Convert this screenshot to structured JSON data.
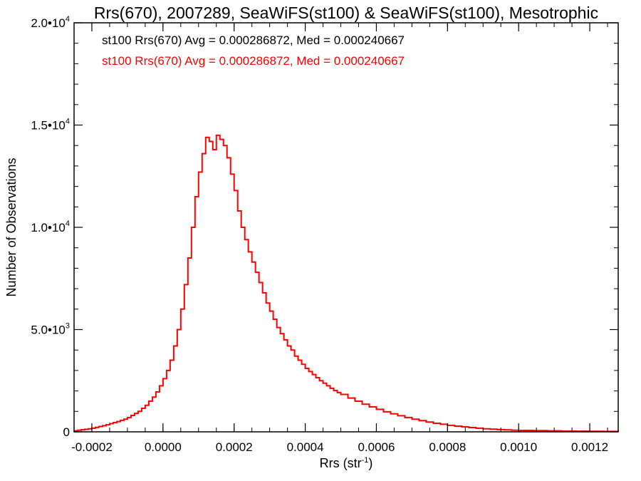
{
  "chart_data": {
    "type": "histogram",
    "title": "Rrs(670), 2007289, SeaWiFS(st100) & SeaWiFS(st100), Mesotrophic",
    "xlabel": {
      "base": "Rrs (str",
      "sup": "-1",
      "tail": ")"
    },
    "ylabel": "Number of Observations",
    "xlim": [
      -0.00025,
      0.00128
    ],
    "ylim": [
      0,
      20000
    ],
    "x_ticks": [
      {
        "value": -0.0002,
        "label": "-0.0002"
      },
      {
        "value": 0.0,
        "label": "0.0000"
      },
      {
        "value": 0.0002,
        "label": "0.0002"
      },
      {
        "value": 0.0004,
        "label": "0.0004"
      },
      {
        "value": 0.0006,
        "label": "0.0006"
      },
      {
        "value": 0.0008,
        "label": "0.0008"
      },
      {
        "value": 0.001,
        "label": "0.0010"
      },
      {
        "value": 0.0012,
        "label": "0.0012"
      }
    ],
    "y_ticks": [
      {
        "value": 0,
        "base": "0",
        "sup": ""
      },
      {
        "value": 5000,
        "base": "5.0•10",
        "sup": "3"
      },
      {
        "value": 10000,
        "base": "1.0•10",
        "sup": "4"
      },
      {
        "value": 15000,
        "base": "1.5•10",
        "sup": "4"
      },
      {
        "value": 20000,
        "base": "2.0•10",
        "sup": "4"
      }
    ],
    "legend": [
      {
        "text": "st100 Rrs(670) Avg = 0.000286872, Med = 0.000240667",
        "color": "#000000"
      },
      {
        "text": "st100 Rrs(670) Avg = 0.000286872, Med = 0.000240667",
        "color": "#ff0000"
      }
    ],
    "series": [
      {
        "color": "#000000",
        "x": [
          -0.00025,
          -0.00024,
          -0.00023,
          -0.00022,
          -0.00021,
          -0.0002,
          -0.00019,
          -0.00018,
          -0.00017,
          -0.00016,
          -0.00015,
          -0.00014,
          -0.00013,
          -0.00012,
          -0.00011,
          -0.0001,
          -9e-05,
          -8e-05,
          -7e-05,
          -6e-05,
          -5e-05,
          -4e-05,
          -3e-05,
          -2e-05,
          -1e-05,
          0.0,
          1e-05,
          2e-05,
          3e-05,
          4e-05,
          5e-05,
          6e-05,
          7e-05,
          8e-05,
          9e-05,
          0.0001,
          0.00011,
          0.00012,
          0.00013,
          0.00014,
          0.00015,
          0.00016,
          0.00017,
          0.00018,
          0.00019,
          0.0002,
          0.00021,
          0.00022,
          0.00023,
          0.00024,
          0.00025,
          0.00026,
          0.00027,
          0.00028,
          0.00029,
          0.0003,
          0.00031,
          0.00032,
          0.00033,
          0.00034,
          0.00035,
          0.00036,
          0.00037,
          0.00038,
          0.00039,
          0.0004,
          0.00041,
          0.00042,
          0.00043,
          0.00044,
          0.00045,
          0.00046,
          0.00047,
          0.00048,
          0.00049,
          0.0005,
          0.00052,
          0.00054,
          0.00056,
          0.00058,
          0.0006,
          0.00062,
          0.00064,
          0.00066,
          0.00068,
          0.0007,
          0.00072,
          0.00074,
          0.00076,
          0.00078,
          0.0008,
          0.00082,
          0.00084,
          0.00086,
          0.00088,
          0.0009,
          0.00092,
          0.00094,
          0.00096,
          0.00098,
          0.001,
          0.00104,
          0.00108,
          0.00112,
          0.00116,
          0.0012,
          0.00124,
          0.00128
        ],
        "y": [
          50,
          80,
          100,
          120,
          150,
          180,
          220,
          260,
          300,
          350,
          400,
          450,
          500,
          560,
          620,
          700,
          800,
          900,
          1000,
          1150,
          1300,
          1500,
          1700,
          1950,
          2250,
          2600,
          3000,
          3500,
          4200,
          5000,
          6000,
          7200,
          8500,
          10000,
          11500,
          12700,
          13600,
          14400,
          14200,
          13800,
          14500,
          14300,
          14000,
          13400,
          12600,
          11800,
          10800,
          10000,
          9400,
          8800,
          8300,
          7800,
          7300,
          6800,
          6300,
          5900,
          5500,
          5100,
          4800,
          4500,
          4200,
          4000,
          3700,
          3500,
          3300,
          3100,
          2950,
          2800,
          2650,
          2500,
          2380,
          2250,
          2130,
          2020,
          1920,
          1830,
          1650,
          1500,
          1350,
          1220,
          1100,
          980,
          880,
          790,
          700,
          620,
          550,
          480,
          420,
          370,
          320,
          280,
          240,
          210,
          180,
          150,
          130,
          110,
          95,
          80,
          70,
          60,
          50,
          40,
          30,
          25,
          20,
          15
        ]
      },
      {
        "color": "#ff0000",
        "x": [
          -0.00025,
          -0.00024,
          -0.00023,
          -0.00022,
          -0.00021,
          -0.0002,
          -0.00019,
          -0.00018,
          -0.00017,
          -0.00016,
          -0.00015,
          -0.00014,
          -0.00013,
          -0.00012,
          -0.00011,
          -0.0001,
          -9e-05,
          -8e-05,
          -7e-05,
          -6e-05,
          -5e-05,
          -4e-05,
          -3e-05,
          -2e-05,
          -1e-05,
          0.0,
          1e-05,
          2e-05,
          3e-05,
          4e-05,
          5e-05,
          6e-05,
          7e-05,
          8e-05,
          9e-05,
          0.0001,
          0.00011,
          0.00012,
          0.00013,
          0.00014,
          0.00015,
          0.00016,
          0.00017,
          0.00018,
          0.00019,
          0.0002,
          0.00021,
          0.00022,
          0.00023,
          0.00024,
          0.00025,
          0.00026,
          0.00027,
          0.00028,
          0.00029,
          0.0003,
          0.00031,
          0.00032,
          0.00033,
          0.00034,
          0.00035,
          0.00036,
          0.00037,
          0.00038,
          0.00039,
          0.0004,
          0.00041,
          0.00042,
          0.00043,
          0.00044,
          0.00045,
          0.00046,
          0.00047,
          0.00048,
          0.00049,
          0.0005,
          0.00052,
          0.00054,
          0.00056,
          0.00058,
          0.0006,
          0.00062,
          0.00064,
          0.00066,
          0.00068,
          0.0007,
          0.00072,
          0.00074,
          0.00076,
          0.00078,
          0.0008,
          0.00082,
          0.00084,
          0.00086,
          0.00088,
          0.0009,
          0.00092,
          0.00094,
          0.00096,
          0.00098,
          0.001,
          0.00104,
          0.00108,
          0.00112,
          0.00116,
          0.0012,
          0.00124,
          0.00128
        ],
        "y": [
          50,
          80,
          100,
          120,
          150,
          180,
          220,
          260,
          300,
          350,
          400,
          450,
          500,
          560,
          620,
          700,
          800,
          900,
          1000,
          1150,
          1300,
          1500,
          1700,
          1950,
          2250,
          2600,
          3000,
          3500,
          4200,
          5000,
          6000,
          7200,
          8500,
          10000,
          11500,
          12700,
          13600,
          14400,
          14200,
          13800,
          14500,
          14300,
          14000,
          13400,
          12600,
          11800,
          10800,
          10000,
          9400,
          8800,
          8300,
          7800,
          7300,
          6800,
          6300,
          5900,
          5500,
          5100,
          4800,
          4500,
          4200,
          4000,
          3700,
          3500,
          3300,
          3100,
          2950,
          2800,
          2650,
          2500,
          2380,
          2250,
          2130,
          2020,
          1920,
          1830,
          1650,
          1500,
          1350,
          1220,
          1100,
          980,
          880,
          790,
          700,
          620,
          550,
          480,
          420,
          370,
          320,
          280,
          240,
          210,
          180,
          150,
          130,
          110,
          95,
          80,
          70,
          60,
          50,
          40,
          30,
          25,
          20,
          15
        ]
      }
    ]
  }
}
